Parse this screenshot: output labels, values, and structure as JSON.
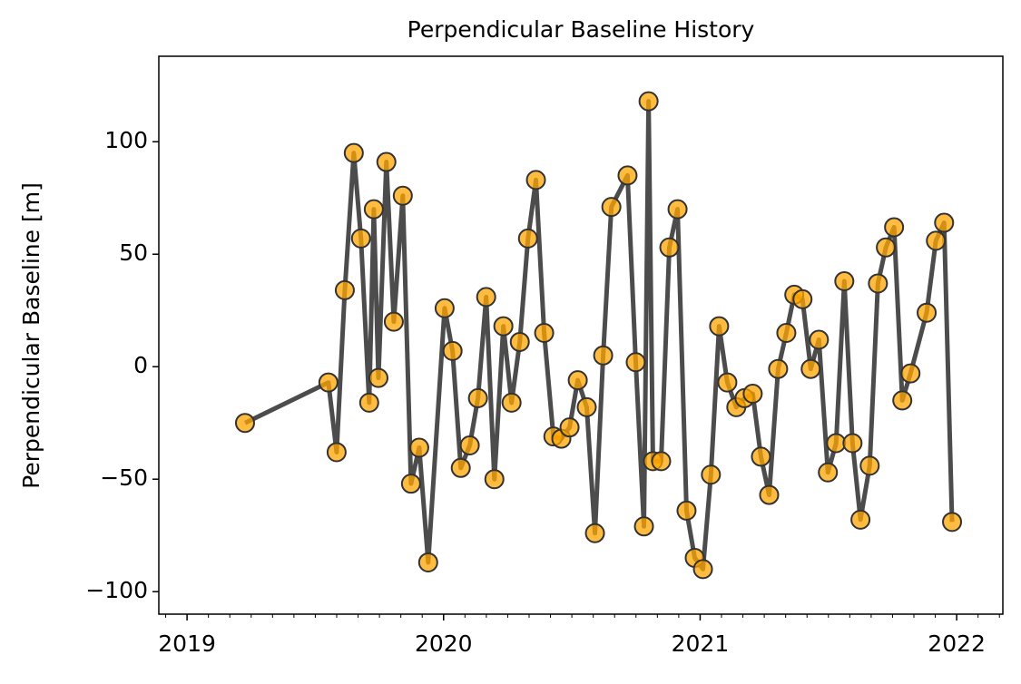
{
  "chart_data": {
    "type": "line",
    "title": "Perpendicular Baseline History",
    "y_label": "Perpendicular Baseline [m]",
    "x": [
      2019.226,
      2019.551,
      2019.583,
      2019.615,
      2019.65,
      2019.678,
      2019.71,
      2019.728,
      2019.746,
      2019.777,
      2019.806,
      2019.841,
      2019.873,
      2019.905,
      2019.94,
      2020.004,
      2020.035,
      2020.067,
      2020.102,
      2020.134,
      2020.166,
      2020.198,
      2020.233,
      2020.265,
      2020.297,
      2020.329,
      2020.36,
      2020.392,
      2020.428,
      2020.459,
      2020.491,
      2020.523,
      2020.558,
      2020.59,
      2020.622,
      2020.654,
      2020.717,
      2020.749,
      2020.781,
      2020.799,
      2020.816,
      2020.848,
      2020.88,
      2020.912,
      2020.947,
      2020.979,
      2021.011,
      2021.042,
      2021.074,
      2021.106,
      2021.141,
      2021.173,
      2021.205,
      2021.237,
      2021.269,
      2021.304,
      2021.336,
      2021.367,
      2021.399,
      2021.431,
      2021.463,
      2021.498,
      2021.53,
      2021.562,
      2021.594,
      2021.625,
      2021.661,
      2021.693,
      2021.724,
      2021.756,
      2021.788,
      2021.82,
      2021.883,
      2021.919,
      2021.951,
      2021.982
    ],
    "values": [
      -25,
      -7,
      -38,
      34,
      95,
      57,
      -16,
      70,
      -5,
      91,
      20,
      76,
      -52,
      -36,
      -87,
      26,
      7,
      -45,
      -35,
      -14,
      31,
      -50,
      18,
      -16,
      11,
      57,
      83,
      15,
      -31,
      -32,
      -27,
      -6,
      -18,
      -74,
      5,
      71,
      85,
      2,
      -71,
      118,
      -42,
      -42,
      53,
      70,
      -64,
      -85,
      -90,
      -48,
      18,
      -7,
      -18,
      -14,
      -12,
      -40,
      -57,
      -1,
      15,
      32,
      30,
      -1,
      12,
      -47,
      -34,
      38,
      -34,
      -68,
      -44,
      37,
      53,
      62,
      -15,
      -3,
      24,
      56,
      64,
      -69
    ],
    "color": "#ffa500",
    "line_color": "#333333",
    "xlim": [
      2018.89,
      2022.18
    ],
    "xticks": [
      2019,
      2020,
      2021,
      2022
    ],
    "ylim": [
      -110,
      138
    ],
    "yticks": [
      {
        "value": -100,
        "label": "−100"
      },
      {
        "value": -50,
        "label": "−50"
      },
      0,
      50,
      100
    ],
    "grid": false
  }
}
